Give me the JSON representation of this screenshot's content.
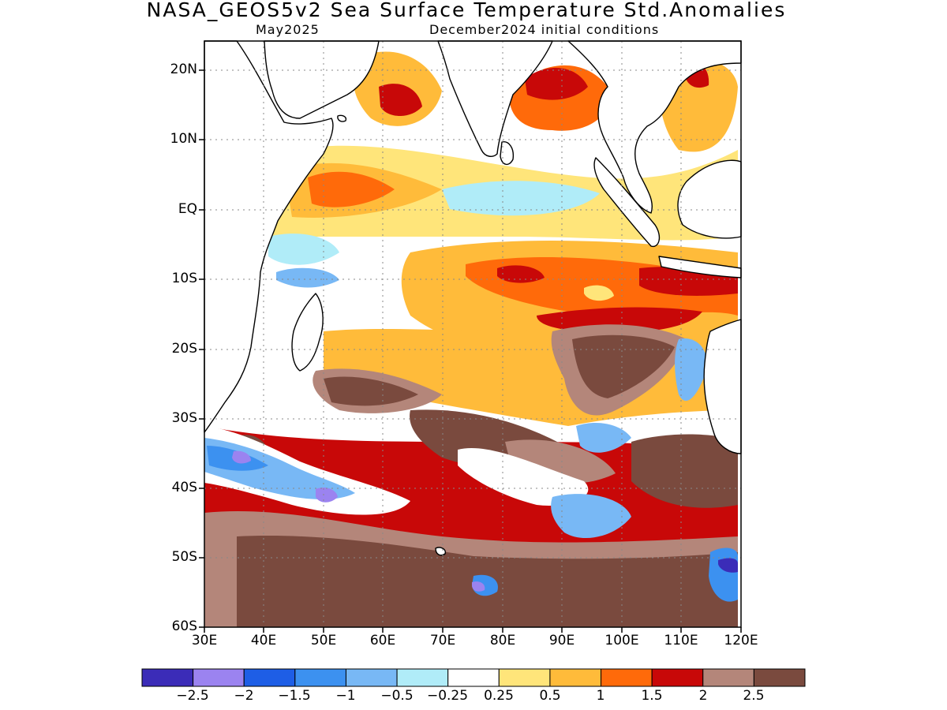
{
  "header": {
    "title": "NASA_GEOS5v2 Sea Surface Temperature Std.Anomalies",
    "subtitle_left": "May2025",
    "subtitle_right": "December2024 initial conditions"
  },
  "map": {
    "region": "Indian Ocean",
    "lat_labels": [
      "20N",
      "10N",
      "EQ",
      "10S",
      "20S",
      "30S",
      "40S",
      "50S",
      "60S"
    ],
    "lon_labels": [
      "30E",
      "40E",
      "50E",
      "60E",
      "70E",
      "80E",
      "90E",
      "100E",
      "110E",
      "120E"
    ],
    "lon_range": [
      30,
      120
    ],
    "lat_range": [
      -60,
      24
    ],
    "gridlines": "dotted"
  },
  "colorbar": {
    "colors": [
      "#3b2cb8",
      "#9b83f0",
      "#1e5ee6",
      "#3c91f0",
      "#78b8f5",
      "#b0ecf8",
      "#ffffff",
      "#ffe57a",
      "#ffbb3a",
      "#ff6a0a",
      "#c80808",
      "#b4867a",
      "#7a4a3e"
    ],
    "labels": [
      "−2.5",
      "−2",
      "−1.5",
      "−1",
      "−0.5",
      "−0.25",
      "0.25",
      "0.5",
      "1",
      "1.5",
      "2",
      "2.5"
    ]
  }
}
